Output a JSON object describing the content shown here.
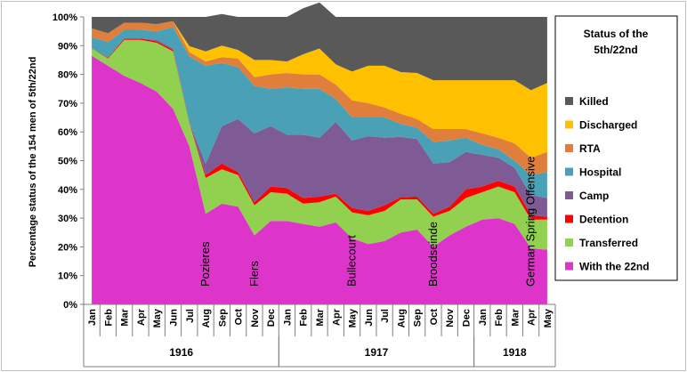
{
  "chart_data": {
    "type": "area",
    "stacked": true,
    "title": "Status of the 5th/22nd",
    "ylabel": "Percentage status of the 154  men of 5th/22nd",
    "ylim": [
      0,
      100
    ],
    "y_ticks": [
      "0%",
      "10%",
      "20%",
      "30%",
      "40%",
      "50%",
      "60%",
      "70%",
      "80%",
      "90%",
      "100%"
    ],
    "months": [
      "Jan",
      "Feb",
      "Mar",
      "Apr",
      "May",
      "Jun",
      "Jul",
      "Aug",
      "Sep",
      "Oct",
      "Nov",
      "Dec",
      "Jan",
      "Feb",
      "Mar",
      "Apr",
      "May",
      "Jun",
      "Jul",
      "Aug",
      "Sep",
      "Oct",
      "Nov",
      "Dec",
      "Jan",
      "Feb",
      "Mar",
      "Apr",
      "May"
    ],
    "years": [
      {
        "label": "1916",
        "start": 0,
        "end": 11
      },
      {
        "label": "1917",
        "start": 12,
        "end": 23
      },
      {
        "label": "1918",
        "start": 24,
        "end": 28
      }
    ],
    "legend_position": "right",
    "series": [
      {
        "name": "With the 22nd",
        "color": "#dd35c9",
        "values": [
          86.5,
          83,
          79.5,
          77,
          74,
          68,
          55,
          31.5,
          35,
          34,
          24,
          29,
          29,
          28,
          27,
          28.5,
          23,
          21,
          22,
          25,
          26,
          20,
          24,
          27,
          29.5,
          30,
          28,
          19.5,
          19
        ]
      },
      {
        "name": "Transferred",
        "color": "#92d050",
        "values": [
          2.5,
          2.5,
          12.5,
          15,
          17,
          20,
          8,
          12.5,
          12,
          11,
          10.5,
          10,
          9.5,
          7,
          8.5,
          9,
          9,
          10,
          10.5,
          11.5,
          10.5,
          10.5,
          8.5,
          10,
          9.5,
          11,
          11,
          10,
          10.5
        ]
      },
      {
        "name": "Detention",
        "color": "#ff0000",
        "values": [
          0,
          0.3,
          0.5,
          0.5,
          0.5,
          0.5,
          0.3,
          1,
          2,
          1,
          1,
          2,
          2,
          2,
          2,
          1,
          1.5,
          1.5,
          2,
          0.8,
          1,
          1,
          1.5,
          3,
          2,
          2,
          2,
          1.5,
          1
        ]
      },
      {
        "name": "Camp",
        "color": "#7e5b95",
        "values": [
          0,
          0,
          0,
          0,
          0.5,
          0.5,
          0,
          4,
          13,
          18.5,
          24,
          21,
          18.5,
          22,
          20.5,
          25,
          23.5,
          26,
          23.5,
          21,
          20,
          17.5,
          15.5,
          13,
          11,
          8,
          6.5,
          7,
          6.5
        ]
      },
      {
        "name": "Hospital",
        "color": "#4aa0b5",
        "values": [
          4,
          5.5,
          3,
          3,
          3,
          7.5,
          23,
          34,
          22,
          18,
          16.5,
          13,
          16.5,
          16,
          17,
          8,
          8,
          6.5,
          7,
          4.5,
          4,
          7.5,
          7.5,
          5,
          3.5,
          3,
          2.5,
          7,
          9
        ]
      },
      {
        "name": "RTA",
        "color": "#e07f3b",
        "values": [
          3,
          3,
          2.5,
          2.5,
          2.5,
          2,
          1.5,
          1.5,
          2,
          3,
          3,
          5,
          5,
          5,
          5,
          5,
          6,
          5,
          3.5,
          3.5,
          3,
          4.5,
          4,
          3,
          4,
          4,
          6,
          6,
          7
        ]
      },
      {
        "name": "Discharged",
        "color": "#ffc000",
        "values": [
          0,
          0,
          0,
          0,
          0,
          0,
          2,
          3.5,
          4,
          3,
          6,
          5,
          4,
          7,
          9,
          7,
          10,
          13,
          14.5,
          14.5,
          16,
          17,
          17,
          17,
          18.5,
          20,
          22,
          23.5,
          24
        ]
      },
      {
        "name": "Killed",
        "color": "#595959",
        "values": [
          4,
          5.7,
          2,
          2,
          2.5,
          1.5,
          10.2,
          12,
          11,
          11.5,
          15,
          15,
          15.5,
          16,
          16,
          16.5,
          19,
          17,
          17,
          19.2,
          19.5,
          22,
          22,
          22,
          22,
          22,
          22,
          25.5,
          23
        ]
      }
    ],
    "annotations": [
      {
        "text": "Pozieres",
        "index": 7
      },
      {
        "text": "Flers",
        "index": 10
      },
      {
        "text": "Bullecourt",
        "index": 16
      },
      {
        "text": "Broodseinde",
        "index": 21
      },
      {
        "text": "German Spring Offensive",
        "index": 27
      }
    ]
  }
}
